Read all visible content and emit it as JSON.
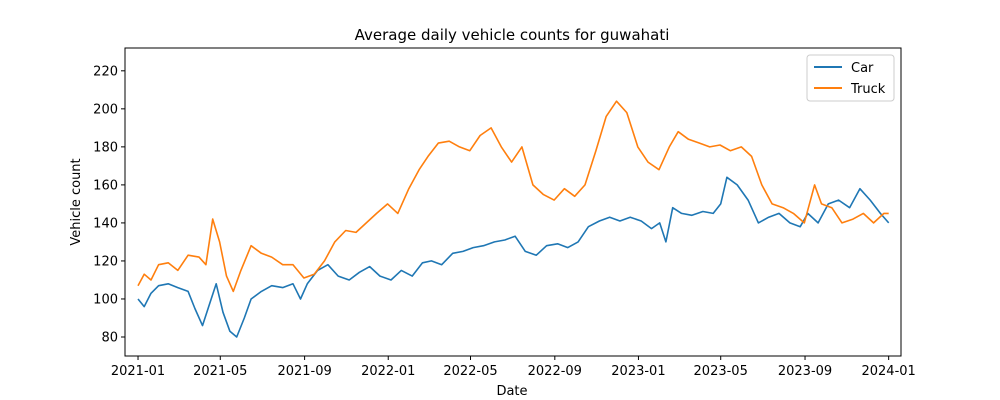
{
  "chart_data": {
    "type": "line",
    "title": "Average daily vehicle counts for guwahati",
    "xlabel": "Date",
    "ylabel": "Vehicle count",
    "x_range": [
      "2020-12-13",
      "2024-01-19"
    ],
    "ylim": [
      70,
      232
    ],
    "x_ticks": [
      "2021-01",
      "2021-05",
      "2021-09",
      "2022-01",
      "2022-05",
      "2022-09",
      "2023-01",
      "2023-05",
      "2023-09",
      "2024-01"
    ],
    "y_ticks": [
      80,
      100,
      120,
      140,
      160,
      180,
      200,
      220
    ],
    "grid": false,
    "legend": "top-right",
    "series": [
      {
        "name": "Car",
        "color": "#1f77b4",
        "points": [
          [
            "2021-01-01",
            100
          ],
          [
            "2021-01-10",
            96
          ],
          [
            "2021-01-20",
            103
          ],
          [
            "2021-01-31",
            107
          ],
          [
            "2021-02-14",
            108
          ],
          [
            "2021-02-28",
            106
          ],
          [
            "2021-03-15",
            104
          ],
          [
            "2021-03-25",
            95
          ],
          [
            "2021-04-05",
            86
          ],
          [
            "2021-04-15",
            97
          ],
          [
            "2021-04-25",
            108
          ],
          [
            "2021-05-05",
            93
          ],
          [
            "2021-05-15",
            83
          ],
          [
            "2021-05-25",
            80
          ],
          [
            "2021-06-05",
            90
          ],
          [
            "2021-06-15",
            100
          ],
          [
            "2021-06-30",
            104
          ],
          [
            "2021-07-15",
            107
          ],
          [
            "2021-07-31",
            106
          ],
          [
            "2021-08-15",
            108
          ],
          [
            "2021-08-26",
            100
          ],
          [
            "2021-09-05",
            108
          ],
          [
            "2021-09-20",
            115
          ],
          [
            "2021-10-05",
            118
          ],
          [
            "2021-10-20",
            112
          ],
          [
            "2021-11-05",
            110
          ],
          [
            "2021-11-20",
            114
          ],
          [
            "2021-12-05",
            117
          ],
          [
            "2021-12-20",
            112
          ],
          [
            "2022-01-05",
            110
          ],
          [
            "2022-01-20",
            115
          ],
          [
            "2022-02-05",
            112
          ],
          [
            "2022-02-20",
            119
          ],
          [
            "2022-03-05",
            120
          ],
          [
            "2022-03-20",
            118
          ],
          [
            "2022-04-05",
            124
          ],
          [
            "2022-04-20",
            125
          ],
          [
            "2022-05-05",
            127
          ],
          [
            "2022-05-20",
            128
          ],
          [
            "2022-06-05",
            130
          ],
          [
            "2022-06-20",
            131
          ],
          [
            "2022-07-05",
            133
          ],
          [
            "2022-07-20",
            125
          ],
          [
            "2022-08-05",
            123
          ],
          [
            "2022-08-20",
            128
          ],
          [
            "2022-09-05",
            129
          ],
          [
            "2022-09-20",
            127
          ],
          [
            "2022-10-05",
            130
          ],
          [
            "2022-10-20",
            138
          ],
          [
            "2022-11-05",
            141
          ],
          [
            "2022-11-20",
            143
          ],
          [
            "2022-12-05",
            141
          ],
          [
            "2022-12-20",
            143
          ],
          [
            "2023-01-05",
            141
          ],
          [
            "2023-01-20",
            137
          ],
          [
            "2023-02-01",
            140
          ],
          [
            "2023-02-10",
            130
          ],
          [
            "2023-02-20",
            148
          ],
          [
            "2023-03-05",
            145
          ],
          [
            "2023-03-20",
            144
          ],
          [
            "2023-04-05",
            146
          ],
          [
            "2023-04-20",
            145
          ],
          [
            "2023-05-01",
            150
          ],
          [
            "2023-05-10",
            164
          ],
          [
            "2023-05-25",
            160
          ],
          [
            "2023-06-10",
            152
          ],
          [
            "2023-06-25",
            140
          ],
          [
            "2023-07-10",
            143
          ],
          [
            "2023-07-25",
            145
          ],
          [
            "2023-08-10",
            140
          ],
          [
            "2023-08-25",
            138
          ],
          [
            "2023-09-05",
            145
          ],
          [
            "2023-09-20",
            140
          ],
          [
            "2023-10-05",
            150
          ],
          [
            "2023-10-20",
            152
          ],
          [
            "2023-11-05",
            148
          ],
          [
            "2023-11-20",
            158
          ],
          [
            "2023-12-05",
            152
          ],
          [
            "2023-12-20",
            145
          ],
          [
            "2024-01-01",
            140
          ]
        ]
      },
      {
        "name": "Truck",
        "color": "#ff7f0e",
        "points": [
          [
            "2021-01-01",
            107
          ],
          [
            "2021-01-10",
            113
          ],
          [
            "2021-01-20",
            110
          ],
          [
            "2021-01-31",
            118
          ],
          [
            "2021-02-14",
            119
          ],
          [
            "2021-02-28",
            115
          ],
          [
            "2021-03-15",
            123
          ],
          [
            "2021-03-31",
            122
          ],
          [
            "2021-04-10",
            118
          ],
          [
            "2021-04-20",
            142
          ],
          [
            "2021-04-30",
            130
          ],
          [
            "2021-05-10",
            112
          ],
          [
            "2021-05-20",
            104
          ],
          [
            "2021-05-31",
            115
          ],
          [
            "2021-06-15",
            128
          ],
          [
            "2021-06-30",
            124
          ],
          [
            "2021-07-15",
            122
          ],
          [
            "2021-07-31",
            118
          ],
          [
            "2021-08-15",
            118
          ],
          [
            "2021-08-31",
            111
          ],
          [
            "2021-09-15",
            113
          ],
          [
            "2021-09-30",
            120
          ],
          [
            "2021-10-15",
            130
          ],
          [
            "2021-10-31",
            136
          ],
          [
            "2021-11-15",
            135
          ],
          [
            "2021-11-30",
            140
          ],
          [
            "2021-12-15",
            145
          ],
          [
            "2021-12-31",
            150
          ],
          [
            "2022-01-15",
            145
          ],
          [
            "2022-01-31",
            158
          ],
          [
            "2022-02-15",
            168
          ],
          [
            "2022-02-28",
            175
          ],
          [
            "2022-03-15",
            182
          ],
          [
            "2022-03-31",
            183
          ],
          [
            "2022-04-15",
            180
          ],
          [
            "2022-04-30",
            178
          ],
          [
            "2022-05-15",
            186
          ],
          [
            "2022-05-31",
            190
          ],
          [
            "2022-06-15",
            180
          ],
          [
            "2022-06-30",
            172
          ],
          [
            "2022-07-15",
            180
          ],
          [
            "2022-07-31",
            160
          ],
          [
            "2022-08-15",
            155
          ],
          [
            "2022-08-31",
            152
          ],
          [
            "2022-09-15",
            158
          ],
          [
            "2022-09-30",
            154
          ],
          [
            "2022-10-15",
            160
          ],
          [
            "2022-10-31",
            178
          ],
          [
            "2022-11-15",
            196
          ],
          [
            "2022-11-30",
            204
          ],
          [
            "2022-12-15",
            198
          ],
          [
            "2022-12-31",
            180
          ],
          [
            "2023-01-15",
            172
          ],
          [
            "2023-01-31",
            168
          ],
          [
            "2023-02-15",
            180
          ],
          [
            "2023-02-28",
            188
          ],
          [
            "2023-03-15",
            184
          ],
          [
            "2023-03-31",
            182
          ],
          [
            "2023-04-15",
            180
          ],
          [
            "2023-04-30",
            181
          ],
          [
            "2023-05-15",
            178
          ],
          [
            "2023-05-31",
            180
          ],
          [
            "2023-06-15",
            175
          ],
          [
            "2023-06-30",
            160
          ],
          [
            "2023-07-15",
            150
          ],
          [
            "2023-07-31",
            148
          ],
          [
            "2023-08-15",
            145
          ],
          [
            "2023-08-31",
            140
          ],
          [
            "2023-09-15",
            160
          ],
          [
            "2023-09-25",
            150
          ],
          [
            "2023-10-10",
            148
          ],
          [
            "2023-10-25",
            140
          ],
          [
            "2023-11-10",
            142
          ],
          [
            "2023-11-25",
            145
          ],
          [
            "2023-12-10",
            140
          ],
          [
            "2023-12-25",
            145
          ],
          [
            "2024-01-01",
            145
          ]
        ]
      }
    ]
  }
}
